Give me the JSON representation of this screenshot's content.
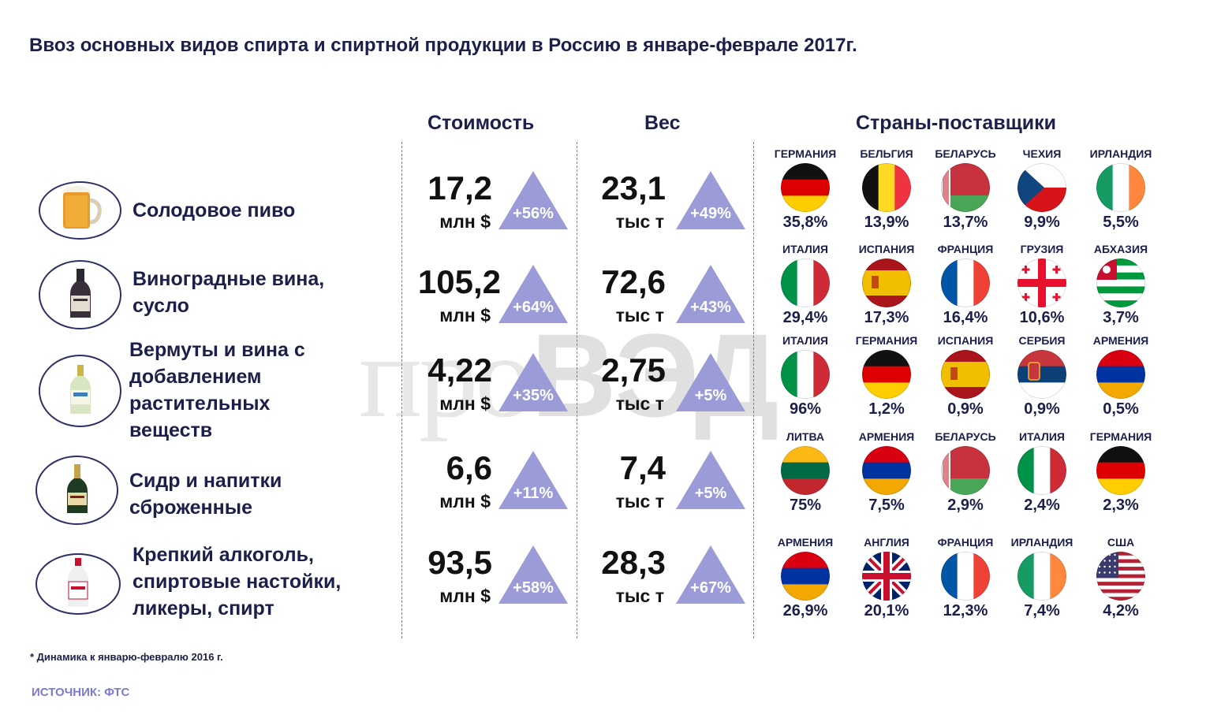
{
  "title": "Ввоз основных видов спирта и спиртной продукции в Россию в январе-феврале 2017г.",
  "headers": {
    "cost": "Стоимость",
    "weight": "Вес",
    "countries": "Страны-поставщики"
  },
  "watermark": {
    "part1": "про",
    "part2": "ВЭД"
  },
  "colors": {
    "arrow": "#9b9bd8",
    "text": "#1c1f4a",
    "source": "#7b7ad0"
  },
  "rows": [
    {
      "product": [
        "Солодовое пиво"
      ],
      "icon": "beer-mug-icon",
      "cost": "17,2",
      "cost_unit": "млн $",
      "cost_change": "+56%",
      "weight": "23,1",
      "weight_unit": "тыс т",
      "weight_change": "+49%",
      "countries": [
        {
          "name": "ГЕРМАНИЯ",
          "pct": "35,8%",
          "flag": "germany"
        },
        {
          "name": "БЕЛЬГИЯ",
          "pct": "13,9%",
          "flag": "belgium"
        },
        {
          "name": "БЕЛАРУСЬ",
          "pct": "13,7%",
          "flag": "belarus"
        },
        {
          "name": "ЧЕХИЯ",
          "pct": "9,9%",
          "flag": "czech"
        },
        {
          "name": "ИРЛАНДИЯ",
          "pct": "5,5%",
          "flag": "ireland"
        }
      ]
    },
    {
      "product": [
        "Виноградные вина,",
        "сусло"
      ],
      "icon": "wine-bottle-icon",
      "cost": "105,2",
      "cost_unit": "млн $",
      "cost_change": "+64%",
      "weight": "72,6",
      "weight_unit": "тыс т",
      "weight_change": "+43%",
      "countries": [
        {
          "name": "ИТАЛИЯ",
          "pct": "29,4%",
          "flag": "italy"
        },
        {
          "name": "ИСПАНИЯ",
          "pct": "17,3%",
          "flag": "spain"
        },
        {
          "name": "ФРАНЦИЯ",
          "pct": "16,4%",
          "flag": "france"
        },
        {
          "name": "ГРУЗИЯ",
          "pct": "10,6%",
          "flag": "georgia"
        },
        {
          "name": "АБХАЗИЯ",
          "pct": "3,7%",
          "flag": "abkhazia"
        }
      ]
    },
    {
      "product": [
        "Вермуты и вина с",
        "добавлением",
        "растительных",
        "веществ"
      ],
      "icon": "vermouth-bottle-icon",
      "cost": "4,22",
      "cost_unit": "млн $",
      "cost_change": "+35%",
      "weight": "2,75",
      "weight_unit": "тыс т",
      "weight_change": "+5%",
      "countries": [
        {
          "name": "ИТАЛИЯ",
          "pct": "96%",
          "flag": "italy"
        },
        {
          "name": "ГЕРМАНИЯ",
          "pct": "1,2%",
          "flag": "germany"
        },
        {
          "name": "ИСПАНИЯ",
          "pct": "0,9%",
          "flag": "spain"
        },
        {
          "name": "СЕРБИЯ",
          "pct": "0,9%",
          "flag": "serbia"
        },
        {
          "name": "АРМЕНИЯ",
          "pct": "0,5%",
          "flag": "armenia"
        }
      ]
    },
    {
      "product": [
        "Сидр и напитки",
        "сброженные"
      ],
      "icon": "cider-bottle-icon",
      "cost": "6,6",
      "cost_unit": "млн $",
      "cost_change": "+11%",
      "weight": "7,4",
      "weight_unit": "тыс т",
      "weight_change": "+5%",
      "countries": [
        {
          "name": "ЛИТВА",
          "pct": "75%",
          "flag": "lithuania"
        },
        {
          "name": "АРМЕНИЯ",
          "pct": "7,5%",
          "flag": "armenia"
        },
        {
          "name": "БЕЛАРУСЬ",
          "pct": "2,9%",
          "flag": "belarus"
        },
        {
          "name": "ИТАЛИЯ",
          "pct": "2,4%",
          "flag": "italy"
        },
        {
          "name": "ГЕРМАНИЯ",
          "pct": "2,3%",
          "flag": "germany"
        }
      ]
    },
    {
      "product": [
        "Крепкий алкоголь,",
        "спиртовые настойки,",
        "ликеры, спирт"
      ],
      "icon": "vodka-bottle-icon",
      "cost": "93,5",
      "cost_unit": "млн $",
      "cost_change": "+58%",
      "weight": "28,3",
      "weight_unit": "тыс т",
      "weight_change": "+67%",
      "countries": [
        {
          "name": "АРМЕНИЯ",
          "pct": "26,9%",
          "flag": "armenia"
        },
        {
          "name": "АНГЛИЯ",
          "pct": "20,1%",
          "flag": "uk"
        },
        {
          "name": "ФРАНЦИЯ",
          "pct": "12,3%",
          "flag": "france"
        },
        {
          "name": "ИРЛАНДИЯ",
          "pct": "7,4%",
          "flag": "ireland"
        },
        {
          "name": "США",
          "pct": "4,2%",
          "flag": "usa"
        }
      ]
    }
  ],
  "footnote": "* Динамика к январю-февралю 2016 г.",
  "source": "ИСТОЧНИК:  ФТС"
}
